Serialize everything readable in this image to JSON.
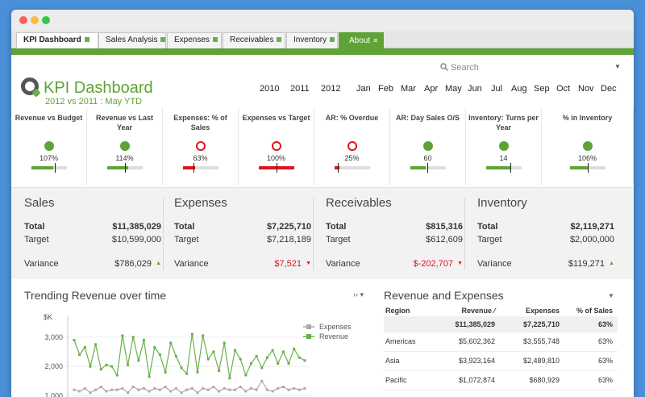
{
  "tabs": [
    {
      "label": "KPI Dashboard"
    },
    {
      "label": "Sales Analysis"
    },
    {
      "label": "Expenses"
    },
    {
      "label": "Receivables"
    },
    {
      "label": "Inventory"
    },
    {
      "label": "About",
      "suffix": "≡"
    }
  ],
  "header": {
    "title": "KPI Dashboard",
    "subtitle": "2012 vs 2011 : May YTD",
    "search_placeholder": "Search"
  },
  "years": [
    "2010",
    "2011",
    "2012"
  ],
  "months": [
    "Jan",
    "Feb",
    "Mar",
    "Apr",
    "May",
    "Jun",
    "Jul",
    "Aug",
    "Sep",
    "Oct",
    "Nov",
    "Dec"
  ],
  "kpis": [
    {
      "title": "Revenue vs Budget",
      "value": "107%",
      "status": "good",
      "fill": 0.62,
      "marker": 0.68,
      "color": "#5fa337"
    },
    {
      "title": "Revenue vs Last Year",
      "value": "114%",
      "status": "good",
      "fill": 0.6,
      "marker": 0.52,
      "color": "#5fa337"
    },
    {
      "title": "Expenses: % of Sales",
      "value": "63%",
      "status": "bad",
      "fill": 0.35,
      "marker": 0.3,
      "color": "#e0141e"
    },
    {
      "title": "Expenses vs Target",
      "value": "100%",
      "status": "bad",
      "fill": 1.0,
      "marker": 0.5,
      "color": "#e0141e"
    },
    {
      "title": "AR: % Overdue",
      "value": "25%",
      "status": "bad",
      "fill": 0.14,
      "marker": 0.1,
      "color": "#e0141e"
    },
    {
      "title": "AR: Day Sales O/S",
      "value": "60",
      "status": "good",
      "fill": 0.45,
      "marker": 0.48,
      "color": "#5fa337"
    },
    {
      "title": "Inventory: Turns per Year",
      "value": "14",
      "status": "good",
      "fill": 0.72,
      "marker": 0.7,
      "color": "#5fa337"
    },
    {
      "title": "% in Inventory",
      "value": "106%",
      "status": "good",
      "fill": 0.5,
      "marker": 0.52,
      "color": "#5fa337"
    }
  ],
  "summary": [
    {
      "title": "Sales",
      "total_label": "Total",
      "total": "$11,385,029",
      "target_label": "Target",
      "target": "$10,599,000",
      "variance_label": "Variance",
      "variance": "$786,029",
      "trend": "up"
    },
    {
      "title": "Expenses",
      "total_label": "Total",
      "total": "$7,225,710",
      "target_label": "Target",
      "target": "$7,218,189",
      "variance_label": "Variance",
      "variance": "$7,521",
      "trend": "down"
    },
    {
      "title": "Receivables",
      "total_label": "Total",
      "total": "$815,316",
      "target_label": "Target",
      "target": "$612,609",
      "variance_label": "Variance",
      "variance": "$-202,707",
      "trend": "down"
    },
    {
      "title": "Inventory",
      "total_label": "Total",
      "total": "$2,119,271",
      "target_label": "Target",
      "target": "$2,000,000",
      "variance_label": "Variance",
      "variance": "$119,271",
      "trend": "up"
    }
  ],
  "trend": {
    "title": "Trending Revenue over time",
    "controls": "›› ▾"
  },
  "chart_data": {
    "type": "line",
    "title": "Trending Revenue over time",
    "ylabel": "$K",
    "yticks": [
      "3,000",
      "2,000",
      "1,000"
    ],
    "ylim": [
      900,
      3600
    ],
    "legend": [
      "Expenses",
      "Revenue"
    ],
    "legend_position": "top-right",
    "series": [
      {
        "name": "Revenue",
        "color": "#6ab04c",
        "values": [
          2900,
          2400,
          2650,
          2000,
          2750,
          1900,
          2050,
          2000,
          1700,
          3050,
          2050,
          3000,
          2200,
          2900,
          1650,
          2650,
          2400,
          1800,
          2800,
          2350,
          1950,
          1750,
          3100,
          1800,
          3050,
          2250,
          2500,
          1850,
          2800,
          1600,
          2550,
          2250,
          1700,
          2100,
          2350,
          1950,
          2300,
          2550,
          2100,
          2500,
          2100,
          2600,
          2300,
          2200
        ]
      },
      {
        "name": "Expenses",
        "color": "#aaaaaa",
        "values": [
          1200,
          1150,
          1250,
          1100,
          1200,
          1300,
          1150,
          1200,
          1200,
          1250,
          1100,
          1300,
          1200,
          1250,
          1150,
          1250,
          1200,
          1300,
          1150,
          1250,
          1100,
          1200,
          1250,
          1100,
          1250,
          1200,
          1300,
          1150,
          1250,
          1200,
          1200,
          1300,
          1150,
          1250,
          1200,
          1500,
          1200,
          1150,
          1250,
          1300,
          1200,
          1250,
          1200,
          1250
        ]
      }
    ]
  },
  "rev_exp": {
    "title": "Revenue and Expenses",
    "headers": [
      "Region",
      "Revenue ⁄",
      "Expenses",
      "% of Sales"
    ],
    "total": [
      "",
      "$11,385,029",
      "$7,225,710",
      "63%"
    ],
    "rows": [
      [
        "Americas",
        "$5,602,362",
        "$3,555,748",
        "63%"
      ],
      [
        "Asia",
        "$3,923,164",
        "$2,489,810",
        "63%"
      ],
      [
        "Pacific",
        "$1,072,874",
        "$680,929",
        "63%"
      ]
    ]
  }
}
